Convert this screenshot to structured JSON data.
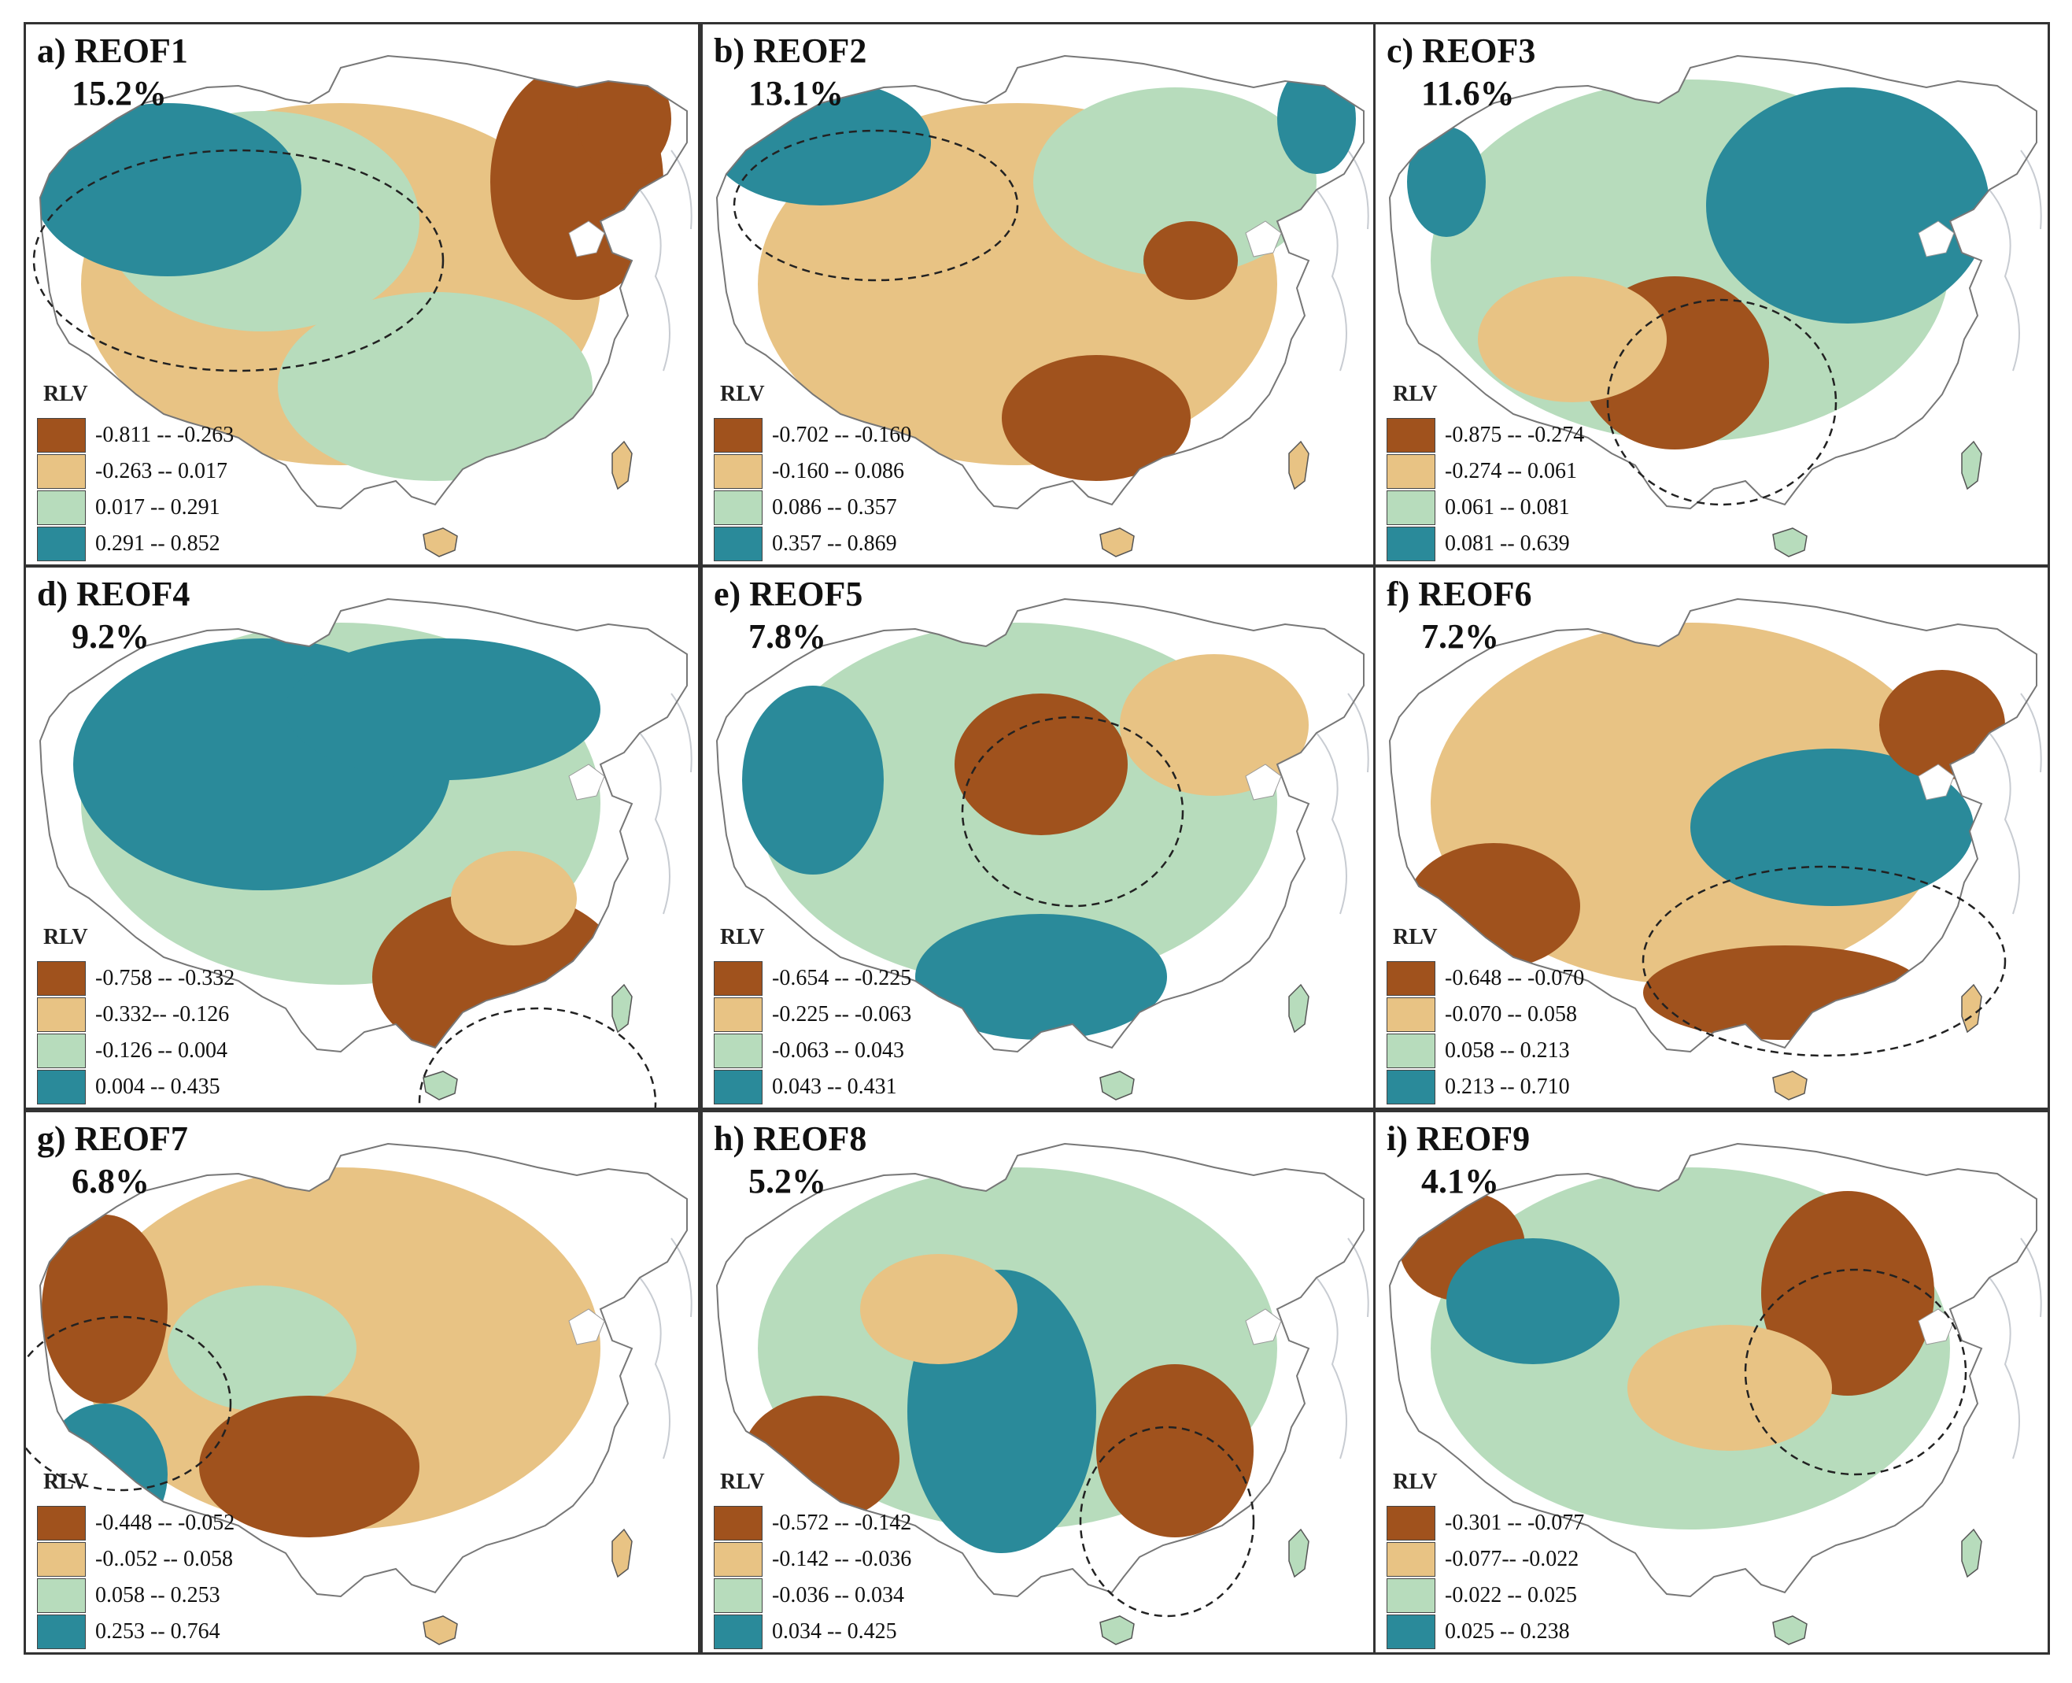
{
  "colors": {
    "c1": "#a0521d",
    "c2": "#e8c384",
    "c3": "#b7dcbc",
    "c4": "#2a8a9a"
  },
  "panels": [
    {
      "title": "a) REOF1",
      "percent": "15.2%",
      "legend_title": "RLV",
      "classes": [
        "-0.811 -- -0.263",
        "-0.263 -- 0.017",
        "0.017 -- 0.291",
        "0.291 -- 0.852"
      ]
    },
    {
      "title": "b) REOF2",
      "percent": "13.1%",
      "legend_title": "RLV",
      "classes": [
        "-0.702 -- -0.160",
        "-0.160 -- 0.086",
        "0.086 -- 0.357",
        "0.357 -- 0.869"
      ]
    },
    {
      "title": "c) REOF3",
      "percent": "11.6%",
      "legend_title": "RLV",
      "classes": [
        "-0.875 -- -0.274",
        "-0.274 -- 0.061",
        "0.061 -- 0.081",
        "0.081 -- 0.639"
      ]
    },
    {
      "title": "d) REOF4",
      "percent": "9.2%",
      "legend_title": "RLV",
      "classes": [
        "-0.758 -- -0.332",
        "-0.332-- -0.126",
        "-0.126 -- 0.004",
        "0.004 -- 0.435"
      ]
    },
    {
      "title": "e) REOF5",
      "percent": "7.8%",
      "legend_title": "RLV",
      "classes": [
        "-0.654 -- -0.225",
        "-0.225 -- -0.063",
        "-0.063 -- 0.043",
        "0.043 -- 0.431"
      ]
    },
    {
      "title": "f) REOF6",
      "percent": "7.2%",
      "legend_title": "RLV",
      "classes": [
        "-0.648 -- -0.070",
        "-0.070 -- 0.058",
        "0.058 -- 0.213",
        "0.213 -- 0.710"
      ]
    },
    {
      "title": "g) REOF7",
      "percent": "6.8%",
      "legend_title": "RLV",
      "classes": [
        "-0.448 -- -0.052",
        "-0..052 -- 0.058",
        "0.058 -- 0.253",
        "0.253 -- 0.764"
      ]
    },
    {
      "title": "h) REOF8",
      "percent": "5.2%",
      "legend_title": "RLV",
      "classes": [
        "-0.572 -- -0.142",
        "-0.142 -- -0.036",
        "-0.036 -- 0.034",
        "0.034 -- 0.425"
      ]
    },
    {
      "title": "i) REOF9",
      "percent": "4.1%",
      "legend_title": "RLV",
      "classes": [
        "-0.301 -- -0.077",
        "-0.077-- -0.022",
        "-0.022 -- 0.025",
        "0.025 -- 0.238"
      ]
    }
  ]
}
